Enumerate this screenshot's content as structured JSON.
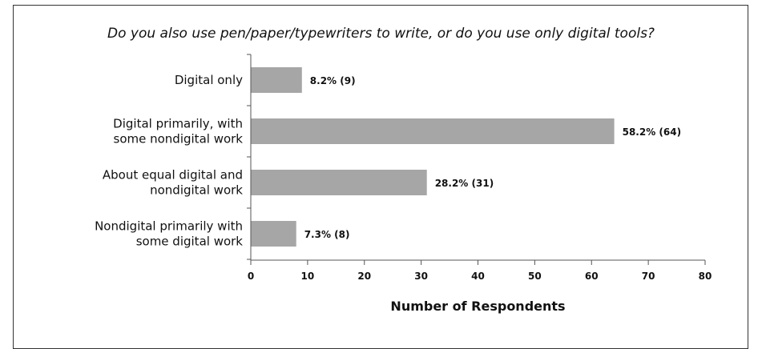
{
  "chart_data": {
    "type": "bar",
    "orientation": "horizontal",
    "title": "Do you also use pen/paper/typewriters to write, or do you use only digital tools?",
    "xlabel": "Number of Respondents",
    "ylabel": "",
    "xlim": [
      0,
      80
    ],
    "xticks": [
      0,
      10,
      20,
      30,
      40,
      50,
      60,
      70,
      80
    ],
    "grid": false,
    "bar_color": "#a6a6a6",
    "bars": [
      {
        "label": [
          "Digital only"
        ],
        "value": 9,
        "data_label": "8.2% (9)"
      },
      {
        "label": [
          "Digital primarily, with",
          "some nondigital work"
        ],
        "value": 64,
        "data_label": "58.2% (64)"
      },
      {
        "label": [
          "About equal digital and",
          "nondigital work"
        ],
        "value": 31,
        "data_label": "28.2% (31)"
      },
      {
        "label": [
          "Nondigital primarily with",
          "some digital work"
        ],
        "value": 8,
        "data_label": "7.3% (8)"
      }
    ]
  }
}
